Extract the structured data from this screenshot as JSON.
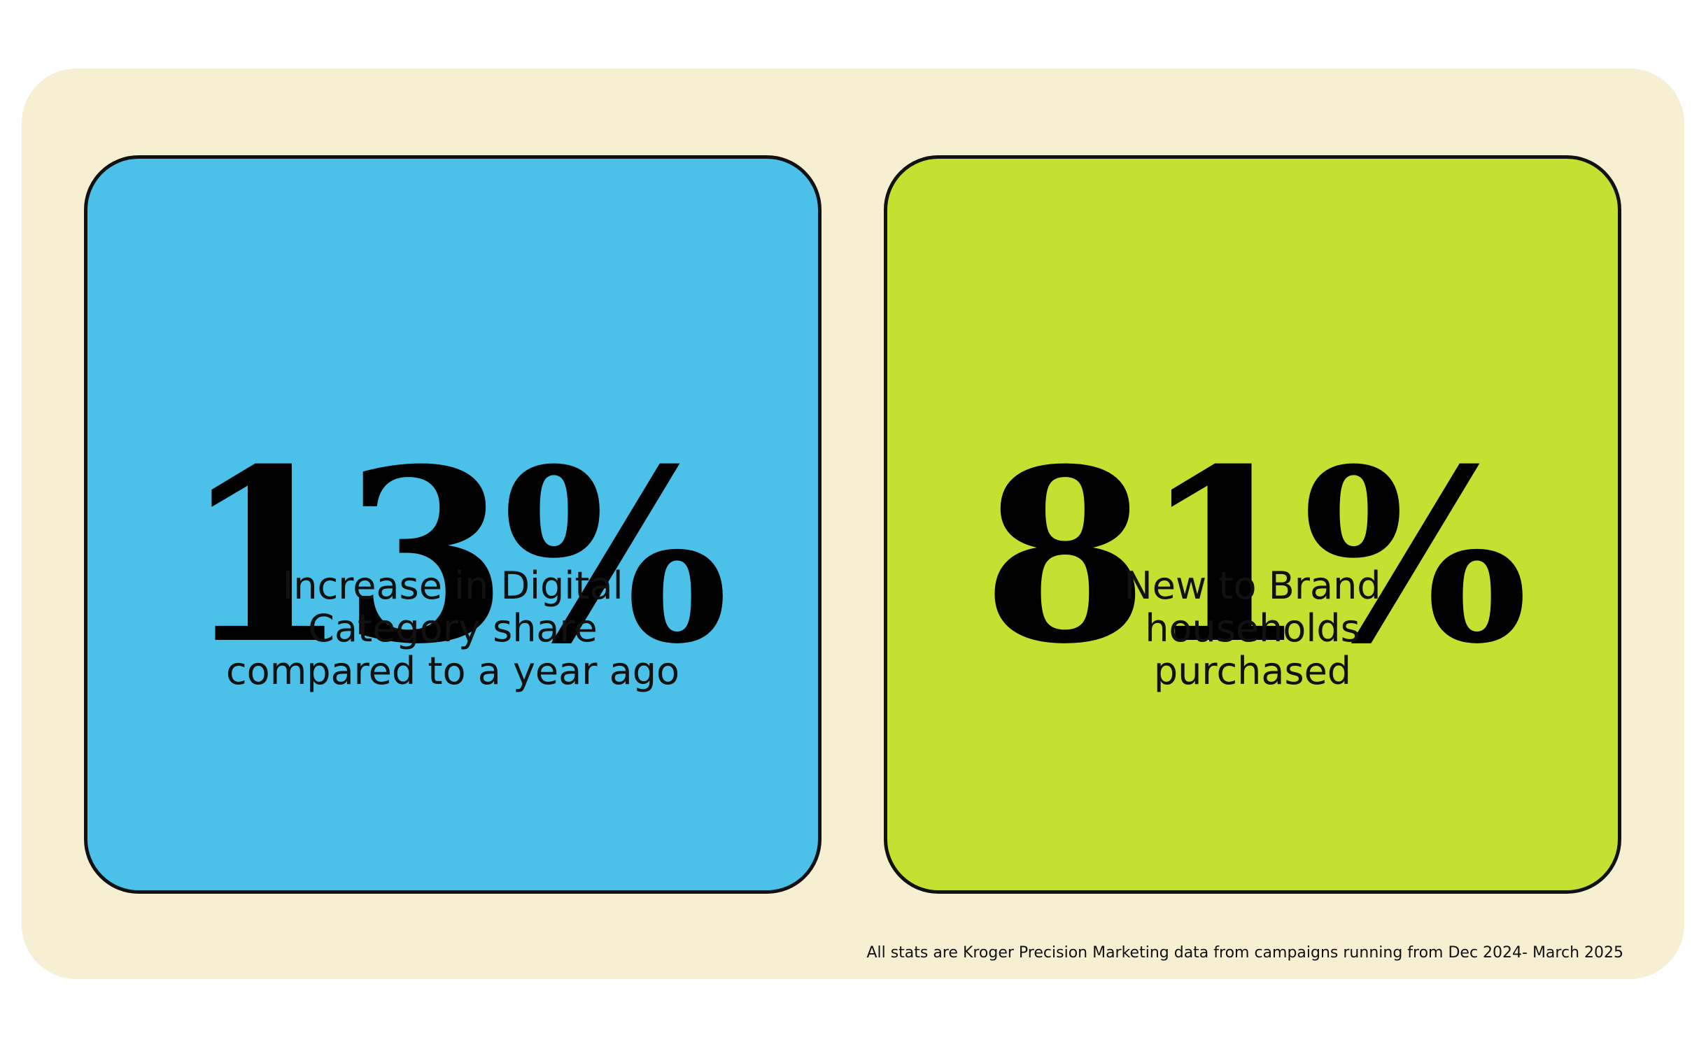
{
  "cards": [
    {
      "stat": "13%",
      "color": "#4bc0e8",
      "label_lines": [
        "Increase in Digital",
        "Category share",
        "compared to a year ago"
      ]
    },
    {
      "stat": "81%",
      "color": "#c4e030",
      "label_lines": [
        "New to Brand",
        "households",
        "purchased"
      ]
    }
  ],
  "footnote": "All stats are Kroger Precision Marketing data from campaigns running from Dec 2024- March 2025"
}
